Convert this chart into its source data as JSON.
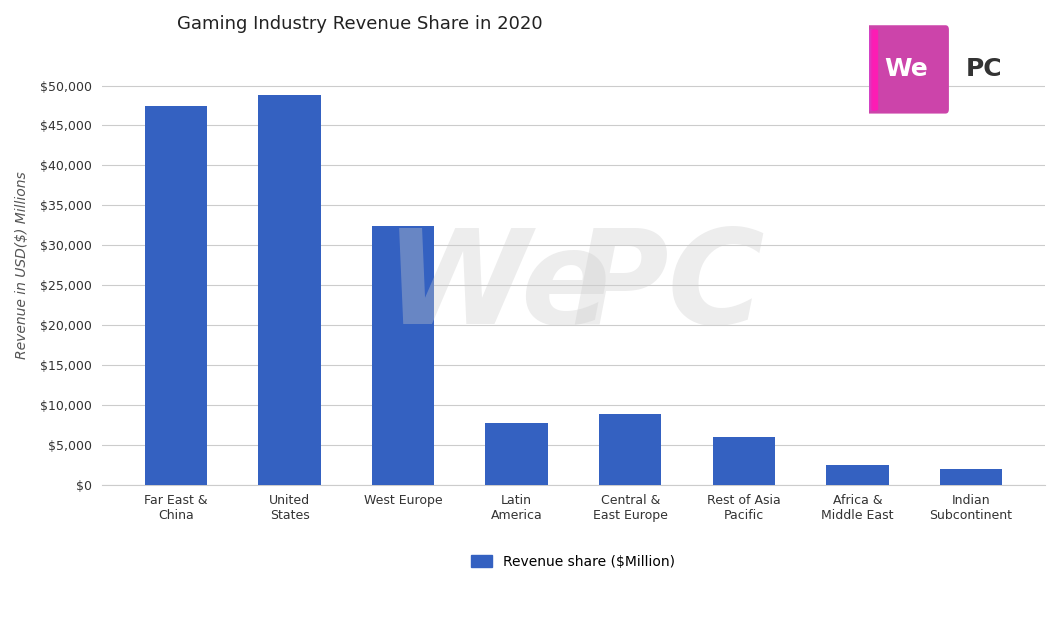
{
  "title": "Gaming Industry Revenue Share in 2020",
  "categories": [
    "Far East &\nChina",
    "United\nStates",
    "West Europe",
    "Latin\nAmerica",
    "Central &\nEast Europe",
    "Rest of Asia\nPacific",
    "Africa &\nMiddle East",
    "Indian\nSubcontinent"
  ],
  "values": [
    47500,
    48800,
    32400,
    7700,
    8800,
    5900,
    2400,
    1900
  ],
  "bar_color": "#3461C1",
  "ylabel": "Revenue in USD($) Millions",
  "ylim": [
    0,
    55000
  ],
  "yticks": [
    0,
    5000,
    10000,
    15000,
    20000,
    25000,
    30000,
    35000,
    40000,
    45000,
    50000
  ],
  "legend_label": "Revenue share ($Million)",
  "background_color": "#ffffff",
  "grid_color": "#cccccc",
  "title_fontsize": 13,
  "label_fontsize": 10,
  "tick_fontsize": 9,
  "watermark_text_we": "We",
  "watermark_text_pc": "PC"
}
